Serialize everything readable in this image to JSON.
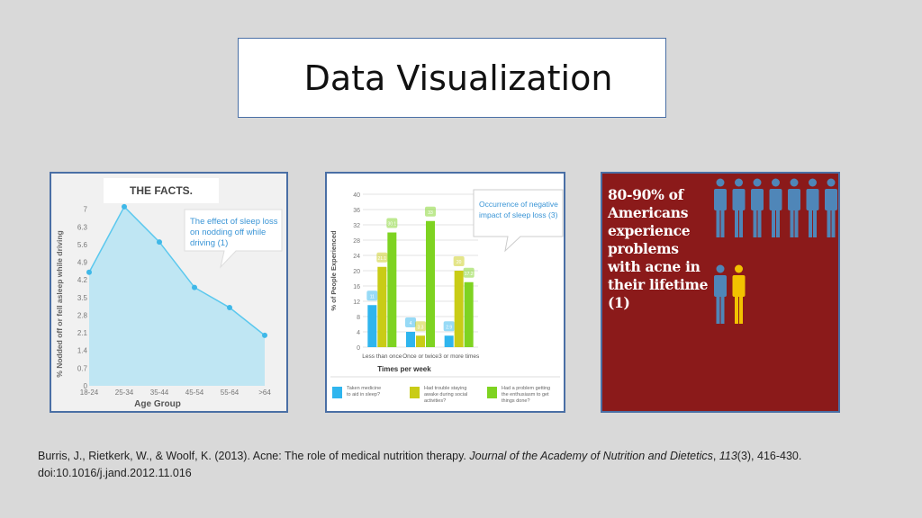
{
  "slide": {
    "title": "Data Visualization"
  },
  "citation": {
    "authors": "Burris, J., Rietkerk, W., & Woolf, K. (2013). Acne: The role of medical nutrition therapy. ",
    "journal": "Journal of the Academy of Nutrition and Dietetics",
    "sep": ", ",
    "volume": "113",
    "rest": "(3), 416-430. doi:10.1016/j.jand.2012.11.016"
  },
  "colors": {
    "line_fill": "#bfe6f3",
    "line_stroke": "#5bc8ee",
    "line_point": "#3fb8e8",
    "bar_blue": "#2fb5ee",
    "bar_yellow": "#c9cc16",
    "bar_green": "#7ed321",
    "acne_bg": "#8b1a1a",
    "person_blue": "#4f86b8",
    "person_yellow": "#f2c200"
  },
  "panel1": {
    "header": "THE FACTS.",
    "callout": "The effect of sleep loss on nodding off while driving (1)",
    "callout_lines": [
      "The effect of sleep loss",
      "on nodding off while",
      "driving (1)"
    ]
  },
  "panel2": {
    "callout_lines": [
      "Occurrence of negative",
      "impact of sleep loss (3)"
    ]
  },
  "panel3": {
    "text": "80-90% of Americans experience problems with acne in their lifetime (1)",
    "lines": [
      "80-90% of",
      "Americans",
      "experience",
      "problems",
      "with acne in",
      "their lifetime",
      "(1)"
    ],
    "icons": {
      "row1_count": 7,
      "row2": [
        "blue",
        "yellow"
      ]
    }
  },
  "chart_data": [
    {
      "type": "area",
      "title": "",
      "xlabel": "Age Group",
      "ylabel": "% Nodded off or fell asleep while driving",
      "categories": [
        "18-24",
        "25-34",
        "35-44",
        "45-54",
        "55-64",
        ">64"
      ],
      "values": [
        4.5,
        7.1,
        5.7,
        3.9,
        3.1,
        2.0
      ],
      "yticks": [
        0,
        0.7,
        1.4,
        2.1,
        2.8,
        3.5,
        4.2,
        4.9,
        5.6,
        6.3,
        7
      ],
      "ylim": [
        0,
        7.7
      ],
      "grid": false,
      "legend": "none"
    },
    {
      "type": "bar",
      "title": "",
      "xlabel": "Times per week",
      "ylabel": "% of People Experienced",
      "categories": [
        "Less than once",
        "Once or twice",
        "3 or more times"
      ],
      "series": [
        {
          "name": "Taken medicine to aid in sleep?",
          "values": [
            11,
            4,
            3
          ],
          "labels": [
            "11",
            "4",
            "2.9"
          ]
        },
        {
          "name": "Had trouble staying awake during social activities?",
          "values": [
            21,
            3,
            20
          ],
          "labels": [
            "21.1",
            "3.3",
            "20"
          ]
        },
        {
          "name": "Had a problem getting the enthusiasm to get things done?",
          "values": [
            30,
            33,
            17
          ],
          "labels": [
            "30.1",
            "33",
            "17.2"
          ]
        }
      ],
      "legend_lines": [
        [
          "Taken medicine",
          "to aid in sleep?"
        ],
        [
          "Had trouble staying",
          "awake during social",
          "activities?"
        ],
        [
          "Had a problem getting",
          "the enthusiasm to get",
          "things done?"
        ]
      ],
      "yticks": [
        0,
        4,
        8,
        12,
        16,
        20,
        24,
        28,
        32,
        36,
        40
      ],
      "ylim": [
        0,
        40
      ],
      "grid": true,
      "legend": "bottom"
    }
  ]
}
